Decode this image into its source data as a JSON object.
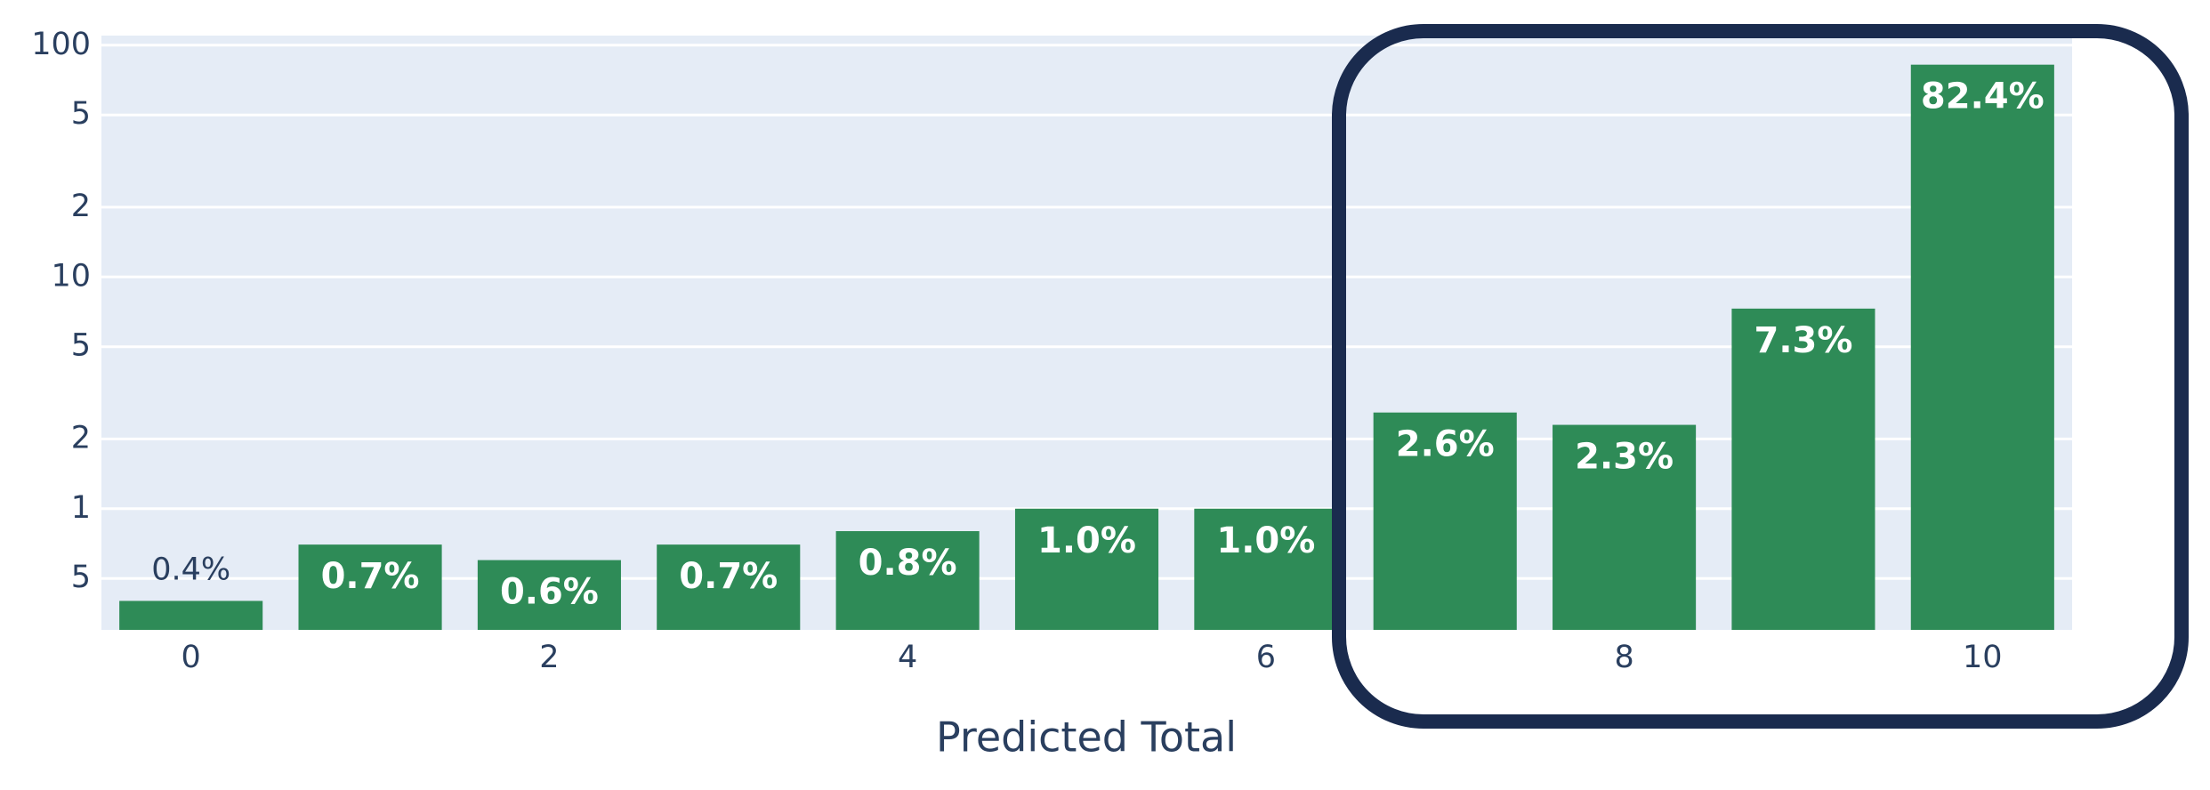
{
  "chart_data": {
    "type": "bar",
    "x_label": "Predicted Total",
    "x": [
      0,
      1,
      2,
      3,
      4,
      5,
      6,
      7,
      8,
      9,
      10
    ],
    "values": [
      0.4,
      0.7,
      0.6,
      0.7,
      0.8,
      1.0,
      1.0,
      2.6,
      2.3,
      7.3,
      82.4
    ],
    "value_labels": [
      "0.4%",
      "0.7%",
      "0.6%",
      "0.7%",
      "0.8%",
      "1.0%",
      "1.0%",
      "2.6%",
      "2.3%",
      "7.3%",
      "82.4%"
    ],
    "color": "#2e8b57",
    "log_y": true,
    "xlim": [
      -0.5,
      10.5
    ],
    "xticks": [
      0,
      2,
      4,
      6,
      8,
      10
    ],
    "ylim": [
      0.3,
      110
    ],
    "yticks": [
      {
        "value": 0.5,
        "label": "5"
      },
      1,
      {
        "value": 2,
        "label": "2"
      },
      {
        "value": 5,
        "label": "5"
      },
      10,
      {
        "value": 20,
        "label": "2"
      },
      {
        "value": 50,
        "label": "5"
      },
      100
    ],
    "grid": true
  }
}
